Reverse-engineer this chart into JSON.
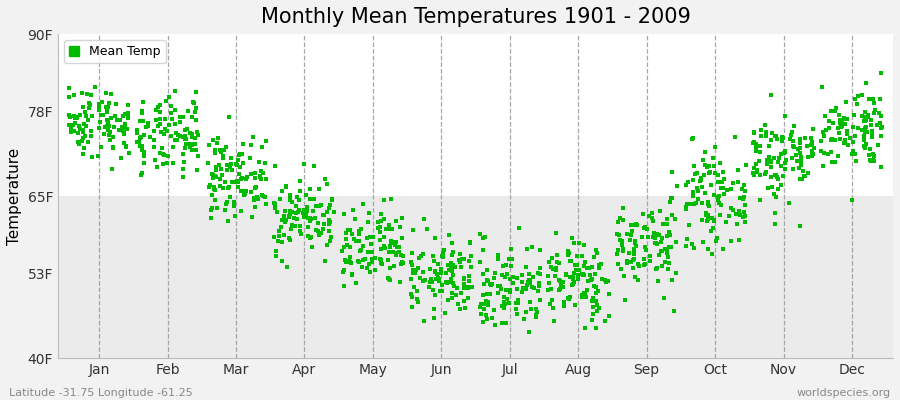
{
  "title": "Monthly Mean Temperatures 1901 - 2009",
  "ylabel": "Temperature",
  "ytick_labels": [
    "40F",
    "53F",
    "65F",
    "78F",
    "90F"
  ],
  "ytick_values": [
    40,
    53,
    65,
    78,
    90
  ],
  "ylim": [
    40,
    90
  ],
  "months": [
    "Jan",
    "Feb",
    "Mar",
    "Apr",
    "May",
    "Jun",
    "Jul",
    "Aug",
    "Sep",
    "Oct",
    "Nov",
    "Dec"
  ],
  "mean_temps_by_month": {
    "1": {
      "mean": 76.5,
      "std": 2.8
    },
    "2": {
      "mean": 74.0,
      "std": 3.0
    },
    "3": {
      "mean": 68.0,
      "std": 3.0
    },
    "4": {
      "mean": 62.0,
      "std": 3.0
    },
    "5": {
      "mean": 56.5,
      "std": 3.2
    },
    "6": {
      "mean": 52.5,
      "std": 3.0
    },
    "7": {
      "mean": 51.0,
      "std": 3.5
    },
    "8": {
      "mean": 52.0,
      "std": 3.2
    },
    "9": {
      "mean": 57.5,
      "std": 3.5
    },
    "10": {
      "mean": 64.5,
      "std": 3.5
    },
    "11": {
      "mean": 71.0,
      "std": 3.5
    },
    "12": {
      "mean": 75.5,
      "std": 3.2
    }
  },
  "n_years": 109,
  "dot_color": "#00BB00",
  "dot_size": 6,
  "background_color": "#f2f2f2",
  "plot_bg_upper": "#ffffff",
  "plot_bg_lower": "#ebebeb",
  "grid_color": "#999999",
  "title_fontsize": 15,
  "axis_fontsize": 11,
  "tick_fontsize": 10,
  "legend_label": "Mean Temp",
  "footer_left": "Latitude -31.75 Longitude -61.25",
  "footer_right": "worldspecies.org"
}
